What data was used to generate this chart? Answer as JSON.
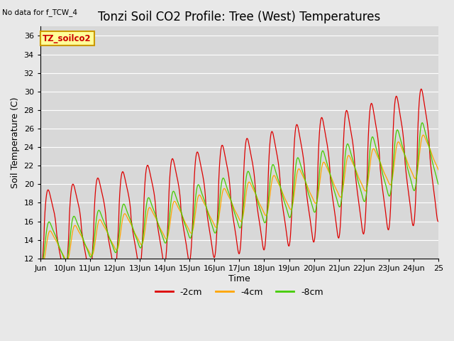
{
  "title": "Tonzi Soil CO2 Profile: Tree (West) Temperatures",
  "subtitle": "No data for f_TCW_4",
  "ylabel": "Soil Temperature (C)",
  "xlabel": "Time",
  "ylim": [
    12,
    37
  ],
  "yticks": [
    12,
    14,
    16,
    18,
    20,
    22,
    24,
    26,
    28,
    30,
    32,
    34,
    36
  ],
  "xtick_labels": [
    "Jun",
    "10Jun",
    "11Jun",
    "12Jun",
    "13Jun",
    "14Jun",
    "15Jun",
    "16Jun",
    "17Jun",
    "18Jun",
    "19Jun",
    "20Jun",
    "21Jun",
    "22Jun",
    "23Jun",
    "24Jun",
    "25"
  ],
  "legend_label": "TZ_soilco2",
  "line_labels": [
    "-2cm",
    "-4cm",
    "-8cm"
  ],
  "line_colors": [
    "#dd0000",
    "#ffa500",
    "#44cc00"
  ],
  "fig_bg_color": "#e8e8e8",
  "plot_bg_color": "#d8d8d8",
  "title_fontsize": 12,
  "axis_fontsize": 9,
  "tick_fontsize": 8
}
